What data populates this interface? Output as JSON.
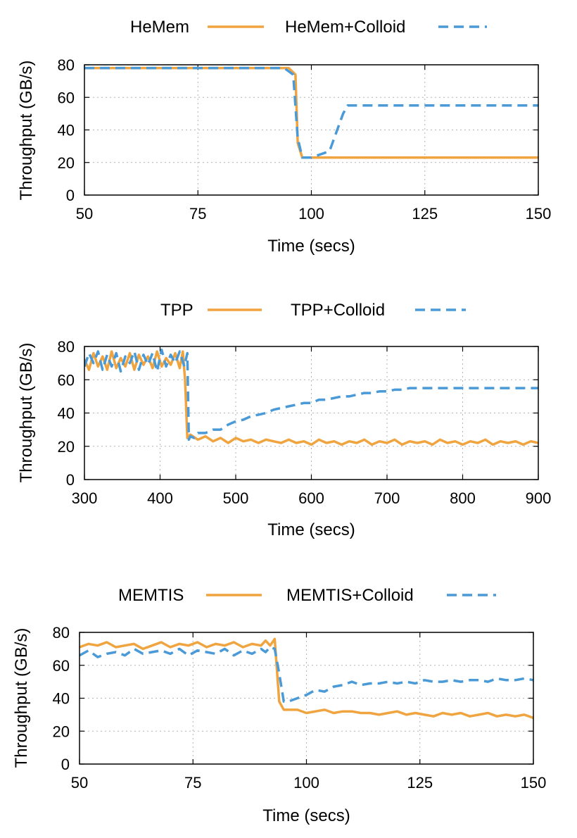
{
  "chart_data": [
    {
      "type": "line",
      "xlabel": "Time (secs)",
      "ylabel": "Throughput (GB/s)",
      "xlim": [
        50,
        150
      ],
      "ylim": [
        0,
        80
      ],
      "xticks": [
        50,
        75,
        100,
        125,
        150
      ],
      "yticks": [
        0,
        20,
        40,
        60,
        80
      ],
      "grid": true,
      "legend": "top-center",
      "colors": {
        "primary": "#f0a440",
        "colloid": "#4a9ad8"
      },
      "series": [
        {
          "name": "HeMem",
          "style": "solid",
          "x": [
            50,
            95,
            96.5,
            97,
            98,
            100,
            150
          ],
          "y": [
            78,
            78,
            74,
            32,
            23,
            23,
            23
          ]
        },
        {
          "name": "HeMem+Colloid",
          "style": "dashed",
          "x": [
            50,
            94,
            96,
            97,
            98,
            100,
            104,
            107,
            108,
            150
          ],
          "y": [
            78,
            78,
            74,
            35,
            23,
            23,
            27,
            50,
            55,
            55
          ]
        }
      ]
    },
    {
      "type": "line",
      "xlabel": "Time (secs)",
      "ylabel": "Throughput (GB/s)",
      "xlim": [
        300,
        900
      ],
      "ylim": [
        0,
        80
      ],
      "xticks": [
        300,
        400,
        500,
        600,
        700,
        800,
        900
      ],
      "yticks": [
        0,
        20,
        40,
        60,
        80
      ],
      "grid": true,
      "legend": "top-center",
      "colors": {
        "primary": "#f0a440",
        "colloid": "#4a9ad8"
      },
      "series": [
        {
          "name": "TPP",
          "style": "solid",
          "x": [
            300,
            306,
            312,
            318,
            324,
            330,
            336,
            342,
            348,
            354,
            360,
            366,
            372,
            378,
            384,
            390,
            396,
            402,
            408,
            414,
            420,
            426,
            430,
            433,
            436,
            440,
            450,
            460,
            470,
            480,
            490,
            500,
            510,
            520,
            530,
            540,
            550,
            560,
            570,
            580,
            590,
            600,
            610,
            620,
            630,
            640,
            650,
            660,
            670,
            680,
            690,
            700,
            710,
            720,
            730,
            740,
            750,
            760,
            770,
            780,
            790,
            800,
            810,
            820,
            830,
            840,
            850,
            860,
            870,
            880,
            890,
            900
          ],
          "y": [
            72,
            66,
            76,
            68,
            74,
            66,
            77,
            67,
            73,
            68,
            76,
            66,
            75,
            69,
            74,
            67,
            77,
            68,
            73,
            69,
            76,
            67,
            77,
            60,
            25,
            27,
            24,
            26,
            23,
            25,
            22,
            25,
            23,
            24,
            22,
            24,
            23,
            22,
            24,
            22,
            23,
            21,
            24,
            22,
            23,
            21,
            23,
            22,
            24,
            21,
            23,
            22,
            24,
            21,
            23,
            22,
            23,
            21,
            24,
            22,
            23,
            21,
            23,
            22,
            24,
            21,
            23,
            22,
            23,
            21,
            23,
            22
          ]
        },
        {
          "name": "TPP+Colloid",
          "style": "dashed",
          "x": [
            300,
            306,
            312,
            318,
            324,
            330,
            336,
            342,
            348,
            354,
            360,
            366,
            372,
            378,
            384,
            390,
            396,
            402,
            408,
            414,
            420,
            426,
            432,
            436,
            438,
            440,
            445,
            450,
            460,
            470,
            480,
            490,
            500,
            510,
            520,
            530,
            540,
            550,
            560,
            570,
            580,
            590,
            600,
            610,
            620,
            630,
            640,
            650,
            660,
            670,
            680,
            690,
            700,
            710,
            720,
            730,
            740,
            750,
            800,
            850,
            900
          ],
          "y": [
            68,
            76,
            70,
            77,
            66,
            75,
            68,
            76,
            65,
            74,
            70,
            77,
            66,
            75,
            69,
            76,
            65,
            78,
            68,
            75,
            70,
            77,
            68,
            76,
            24,
            26,
            25,
            28,
            28,
            30,
            30,
            33,
            35,
            36,
            38,
            39,
            40,
            42,
            43,
            44,
            45,
            46,
            46,
            48,
            48,
            49,
            50,
            50,
            51,
            52,
            52,
            53,
            53,
            54,
            54,
            55,
            55,
            55,
            55,
            55,
            55
          ]
        }
      ]
    },
    {
      "type": "line",
      "xlabel": "Time (secs)",
      "ylabel": "Throughput (GB/s)",
      "xlim": [
        50,
        150
      ],
      "ylim": [
        0,
        80
      ],
      "xticks": [
        50,
        75,
        100,
        125,
        150
      ],
      "yticks": [
        0,
        20,
        40,
        60,
        80
      ],
      "grid": true,
      "legend": "top-center",
      "colors": {
        "primary": "#f0a440",
        "colloid": "#4a9ad8"
      },
      "series": [
        {
          "name": "MEMTIS",
          "style": "solid",
          "x": [
            50,
            52,
            54,
            56,
            58,
            60,
            62,
            64,
            66,
            68,
            70,
            72,
            74,
            76,
            78,
            80,
            82,
            84,
            86,
            88,
            90,
            91,
            92,
            93,
            94,
            95,
            96,
            98,
            100,
            102,
            104,
            106,
            108,
            110,
            112,
            114,
            116,
            118,
            120,
            122,
            124,
            126,
            128,
            130,
            132,
            134,
            136,
            138,
            140,
            142,
            144,
            146,
            148,
            150
          ],
          "y": [
            71,
            73,
            72,
            74,
            71,
            72,
            73,
            70,
            72,
            74,
            71,
            73,
            72,
            74,
            71,
            73,
            72,
            74,
            71,
            73,
            72,
            75,
            72,
            76,
            38,
            33,
            33,
            33,
            31,
            32,
            33,
            31,
            32,
            32,
            31,
            31,
            30,
            31,
            32,
            30,
            31,
            30,
            29,
            31,
            30,
            31,
            29,
            30,
            31,
            29,
            30,
            29,
            30,
            28
          ]
        },
        {
          "name": "MEMTIS+Colloid",
          "style": "dashed",
          "x": [
            50,
            52,
            54,
            56,
            58,
            60,
            62,
            64,
            66,
            68,
            70,
            72,
            74,
            76,
            78,
            80,
            82,
            84,
            86,
            88,
            90,
            91,
            92,
            93,
            94,
            95,
            96,
            98,
            100,
            102,
            104,
            106,
            108,
            110,
            112,
            114,
            116,
            118,
            120,
            122,
            124,
            126,
            128,
            130,
            132,
            134,
            136,
            138,
            140,
            142,
            144,
            146,
            148,
            150
          ],
          "y": [
            66,
            69,
            65,
            67,
            68,
            66,
            70,
            67,
            68,
            69,
            67,
            70,
            66,
            69,
            68,
            67,
            70,
            66,
            69,
            67,
            70,
            68,
            71,
            70,
            55,
            38,
            38,
            40,
            42,
            45,
            44,
            47,
            48,
            50,
            48,
            49,
            49,
            50,
            49,
            50,
            49,
            51,
            50,
            50,
            51,
            50,
            51,
            51,
            50,
            52,
            51,
            51,
            52,
            51
          ]
        }
      ]
    }
  ]
}
